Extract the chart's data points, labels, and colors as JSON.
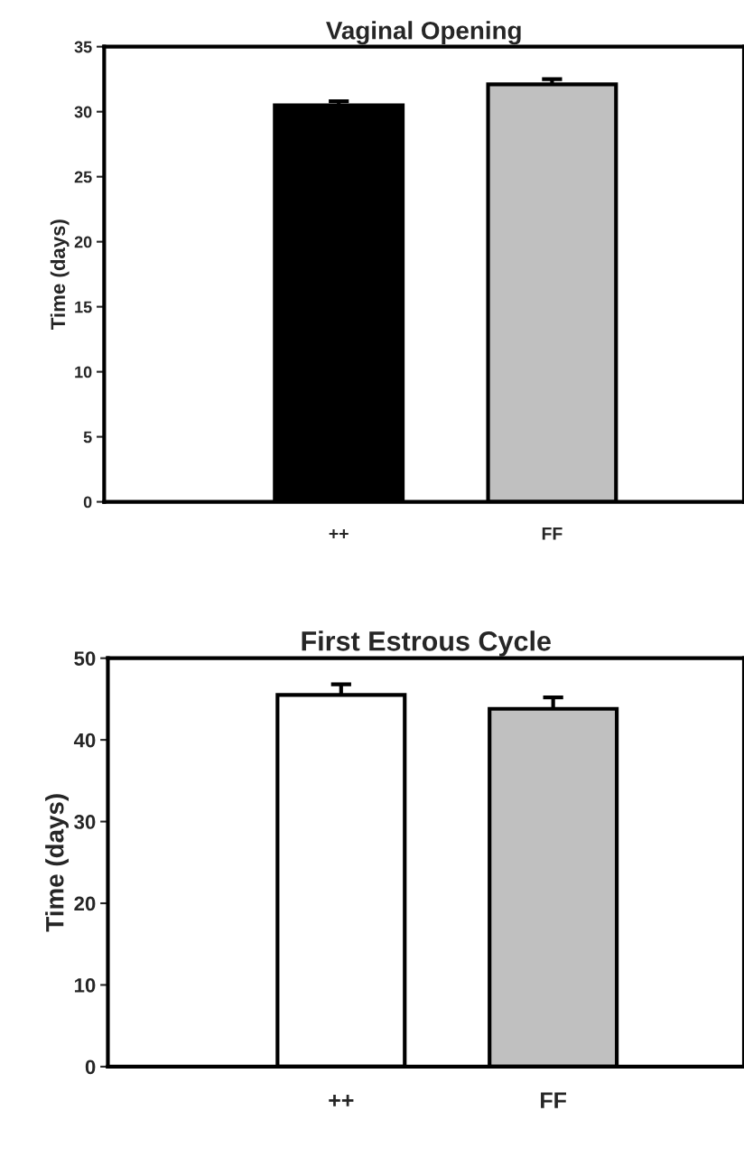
{
  "chart_data": [
    {
      "type": "bar",
      "title": "Vaginal Opening",
      "ylabel": "Time (days)",
      "categories": [
        "++",
        "FF"
      ],
      "values": [
        30.5,
        32.1
      ],
      "errors": [
        0.3,
        0.4
      ],
      "colors": [
        "#000000",
        "#c0c0c0"
      ],
      "ylim": [
        0,
        35
      ],
      "yticks": [
        0,
        5,
        10,
        15,
        20,
        25,
        30,
        35
      ],
      "grid": false,
      "legend": false
    },
    {
      "type": "bar",
      "title": "First Estrous Cycle",
      "ylabel": "Time (days)",
      "categories": [
        "++",
        "FF"
      ],
      "values": [
        45.5,
        43.8
      ],
      "errors": [
        1.3,
        1.4
      ],
      "colors": [
        "#ffffff",
        "#c0c0c0"
      ],
      "ylim": [
        0,
        50
      ],
      "yticks": [
        0,
        10,
        20,
        30,
        40,
        50
      ],
      "grid": false,
      "legend": false
    }
  ]
}
